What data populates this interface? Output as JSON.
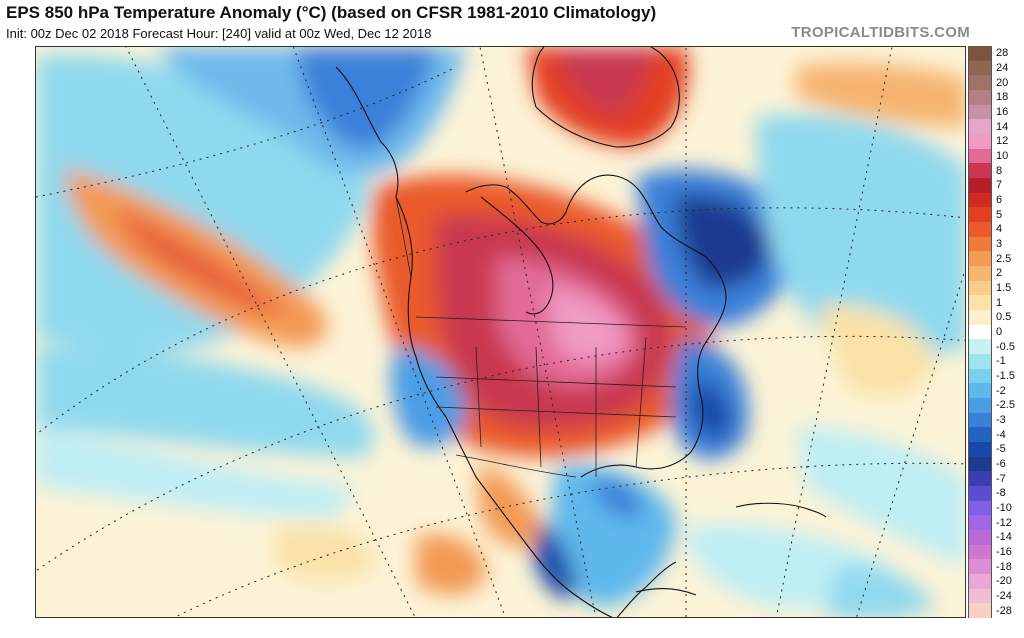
{
  "header": {
    "title": "EPS 850 hPa Temperature Anomaly (°C) (based on CFSR 1981-2010 Climatology)",
    "subtitle": "Init: 00z Dec 02 2018   Forecast Hour: [240]   valid at 00z Wed, Dec 12 2018",
    "brand": "TROPICALTIDBITS.COM"
  },
  "legend": {
    "levels": [
      {
        "label": "28",
        "color": "#7a5540"
      },
      {
        "label": "24",
        "color": "#8e6652"
      },
      {
        "label": "20",
        "color": "#a07168"
      },
      {
        "label": "18",
        "color": "#b47f86"
      },
      {
        "label": "16",
        "color": "#c890a6"
      },
      {
        "label": "14",
        "color": "#e4a6c8"
      },
      {
        "label": "12",
        "color": "#f09ac4"
      },
      {
        "label": "10",
        "color": "#e26b95"
      },
      {
        "label": "8",
        "color": "#c9384f"
      },
      {
        "label": "7",
        "color": "#b61f2a"
      },
      {
        "label": "6",
        "color": "#d02a23"
      },
      {
        "label": "5",
        "color": "#e33f22"
      },
      {
        "label": "4",
        "color": "#ea5a2c"
      },
      {
        "label": "3",
        "color": "#ef7a3c"
      },
      {
        "label": "2.5",
        "color": "#f39a55"
      },
      {
        "label": "2",
        "color": "#f6b46f"
      },
      {
        "label": "1.5",
        "color": "#f8cd8c"
      },
      {
        "label": "1",
        "color": "#fae2a8"
      },
      {
        "label": "0.5",
        "color": "#fcf0c8"
      },
      {
        "label": "0",
        "color": "#ffffff"
      },
      {
        "label": "-0.5",
        "color": "#c9f1f4"
      },
      {
        "label": "-1",
        "color": "#9de4ee"
      },
      {
        "label": "-1.5",
        "color": "#7bd0ee"
      },
      {
        "label": "-2",
        "color": "#5eb8ec"
      },
      {
        "label": "-2.5",
        "color": "#4b9de6"
      },
      {
        "label": "-3",
        "color": "#3a80d9"
      },
      {
        "label": "-4",
        "color": "#2462c4"
      },
      {
        "label": "-5",
        "color": "#1747a8"
      },
      {
        "label": "-6",
        "color": "#1d3a8f"
      },
      {
        "label": "-7",
        "color": "#3b3fb0"
      },
      {
        "label": "-8",
        "color": "#5a4fd0"
      },
      {
        "label": "-10",
        "color": "#7f5ee8"
      },
      {
        "label": "-12",
        "color": "#a066e6"
      },
      {
        "label": "-14",
        "color": "#b86ad8"
      },
      {
        "label": "-16",
        "color": "#cf76d2"
      },
      {
        "label": "-18",
        "color": "#dd8ed3"
      },
      {
        "label": "-20",
        "color": "#e8a7d6"
      },
      {
        "label": "-24",
        "color": "#f0bcd6"
      },
      {
        "label": "-28",
        "color": "#f8d0c6"
      }
    ]
  }
}
